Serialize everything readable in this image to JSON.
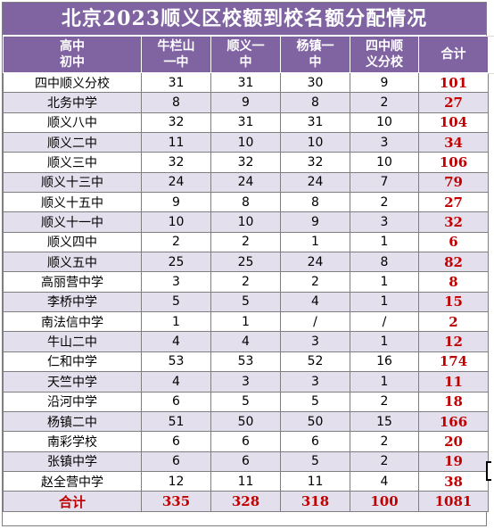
{
  "title": "北京2023顺义区校额到校名额分配情况",
  "header": {
    "corner_top": "高中",
    "corner_bottom": "初中",
    "columns": [
      {
        "line1": "牛栏山",
        "line2": "一中"
      },
      {
        "line1": "顺义一",
        "line2": "中"
      },
      {
        "line1": "杨镇一",
        "line2": "中"
      },
      {
        "line1": "四中顺",
        "line2": "义分校"
      },
      {
        "line1": "合计",
        "line2": ""
      }
    ]
  },
  "rows": [
    {
      "school": "四中顺义分校",
      "values": [
        "31",
        "31",
        "30",
        "9"
      ],
      "total": "101"
    },
    {
      "school": "北务中学",
      "values": [
        "8",
        "9",
        "8",
        "2"
      ],
      "total": "27"
    },
    {
      "school": "顺义八中",
      "values": [
        "32",
        "31",
        "31",
        "10"
      ],
      "total": "104"
    },
    {
      "school": "顺义二中",
      "values": [
        "11",
        "10",
        "10",
        "3"
      ],
      "total": "34"
    },
    {
      "school": "顺义三中",
      "values": [
        "32",
        "32",
        "32",
        "10"
      ],
      "total": "106"
    },
    {
      "school": "顺义十三中",
      "values": [
        "24",
        "24",
        "24",
        "7"
      ],
      "total": "79"
    },
    {
      "school": "顺义十五中",
      "values": [
        "9",
        "8",
        "8",
        "2"
      ],
      "total": "27"
    },
    {
      "school": "顺义十一中",
      "values": [
        "10",
        "10",
        "9",
        "3"
      ],
      "total": "32"
    },
    {
      "school": "顺义四中",
      "values": [
        "2",
        "2",
        "1",
        "1"
      ],
      "total": "6"
    },
    {
      "school": "顺义五中",
      "values": [
        "25",
        "25",
        "24",
        "8"
      ],
      "total": "82"
    },
    {
      "school": "高丽营中学",
      "values": [
        "3",
        "2",
        "2",
        "1"
      ],
      "total": "8"
    },
    {
      "school": "李桥中学",
      "values": [
        "5",
        "5",
        "4",
        "1"
      ],
      "total": "15"
    },
    {
      "school": "南法信中学",
      "values": [
        "1",
        "1",
        "/",
        "/"
      ],
      "total": "2"
    },
    {
      "school": "牛山二中",
      "values": [
        "4",
        "4",
        "3",
        "1"
      ],
      "total": "12"
    },
    {
      "school": "仁和中学",
      "values": [
        "53",
        "53",
        "52",
        "16"
      ],
      "total": "174"
    },
    {
      "school": "天竺中学",
      "values": [
        "4",
        "3",
        "3",
        "1"
      ],
      "total": "11"
    },
    {
      "school": "沿河中学",
      "values": [
        "6",
        "5",
        "5",
        "2"
      ],
      "total": "18"
    },
    {
      "school": "杨镇二中",
      "values": [
        "51",
        "50",
        "50",
        "15"
      ],
      "total": "166"
    },
    {
      "school": "南彩学校",
      "values": [
        "6",
        "6",
        "6",
        "2"
      ],
      "total": "20"
    },
    {
      "school": "张镇中学",
      "values": [
        "6",
        "6",
        "5",
        "2"
      ],
      "total": "19"
    },
    {
      "school": "赵全营中学",
      "values": [
        "12",
        "11",
        "11",
        "4"
      ],
      "total": "38"
    }
  ],
  "sum_row": {
    "label": "合计",
    "values": [
      "335",
      "328",
      "318",
      "100"
    ],
    "total": "1081"
  },
  "colors": {
    "header_bg": "#8064a2",
    "band_bg": "#e4dfec",
    "total_text": "#c00000"
  }
}
